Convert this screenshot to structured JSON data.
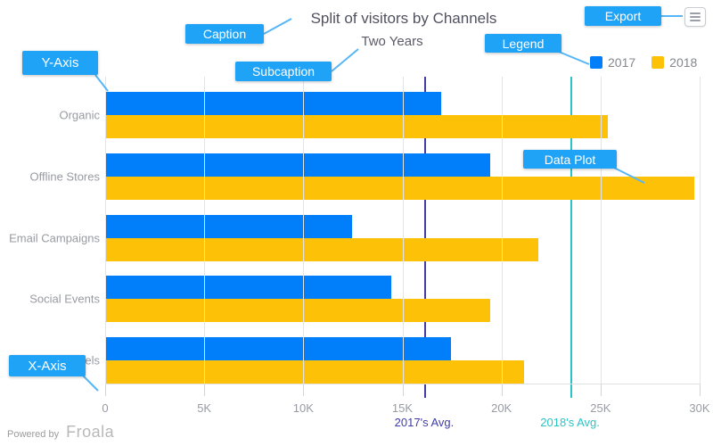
{
  "title": "Split of visitors by Channels",
  "subtitle": "Two Years",
  "annotations": {
    "caption": "Caption",
    "subcaption": "Subcaption",
    "y_axis": "Y-Axis",
    "x_axis": "X-Axis",
    "legend": "Legend",
    "export": "Export",
    "data_plot": "Data Plot"
  },
  "legend": {
    "items": [
      {
        "label": "2017",
        "color": "#017FFB"
      },
      {
        "label": "2018",
        "color": "#FDC107"
      }
    ]
  },
  "footer": {
    "powered_by": "Powered by",
    "brand": "Froala"
  },
  "chart_data": {
    "type": "bar",
    "orientation": "horizontal",
    "title": "Split of visitors by Channels",
    "subtitle": "Two Years",
    "categories": [
      "Organic",
      "Offline Stores",
      "Email Campaigns",
      "Social Events",
      "Paid Channels"
    ],
    "series": [
      {
        "name": "2017",
        "color": "#017FFB",
        "values": [
          16900,
          19400,
          12400,
          14400,
          17400
        ]
      },
      {
        "name": "2018",
        "color": "#FDC107",
        "values": [
          25300,
          29700,
          21800,
          19400,
          21100
        ]
      }
    ],
    "x_ticks": [
      "0",
      "5K",
      "10K",
      "15K",
      "20K",
      "25K",
      "30K"
    ],
    "xlim": [
      0,
      30000
    ],
    "grid": true,
    "legend_position": "top-right",
    "reference_lines": [
      {
        "label": "2017's Avg.",
        "value": 16100,
        "color": "#403DA9"
      },
      {
        "label": "2018's Avg.",
        "value": 23460,
        "color": "#2BC4C6"
      }
    ]
  }
}
